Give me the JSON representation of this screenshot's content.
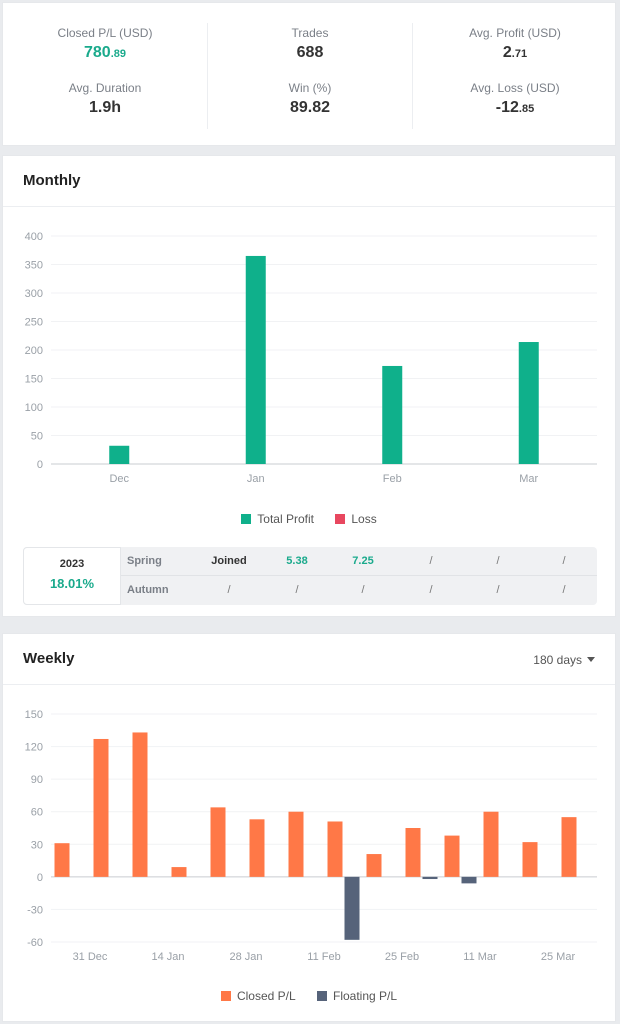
{
  "stats": {
    "closed_pl": {
      "label": "Closed P/L (USD)",
      "int": "780",
      "dec": ".89"
    },
    "trades": {
      "label": "Trades",
      "value": "688"
    },
    "avg_profit": {
      "label": "Avg. Profit (USD)",
      "int": "2",
      "dec": ".71"
    },
    "avg_duration": {
      "label": "Avg. Duration",
      "value": "1.9h"
    },
    "win": {
      "label": "Win (%)",
      "value": "89.82"
    },
    "avg_loss": {
      "label": "Avg. Loss (USD)",
      "int": "-12",
      "dec": ".85"
    }
  },
  "monthly": {
    "title": "Monthly",
    "season": {
      "year": "2023",
      "pct": "18.01%",
      "rows": [
        {
          "name": "Spring",
          "cells": [
            "Joined",
            "5.38",
            "7.25",
            "/",
            "/",
            "/"
          ]
        },
        {
          "name": "Autumn",
          "cells": [
            "/",
            "/",
            "/",
            "/",
            "/",
            "/"
          ]
        }
      ]
    }
  },
  "weekly": {
    "title": "Weekly",
    "period": "180 days"
  },
  "colors": {
    "profit": "#0fb08b",
    "loss": "#e8475f",
    "closed": "#ff7847",
    "floating": "#56637a",
    "accent": "#1aaa8c"
  },
  "chart_data": [
    {
      "type": "bar",
      "categories": [
        "Dec",
        "Jan",
        "Feb",
        "Mar"
      ],
      "series": [
        {
          "name": "Total Profit",
          "values": [
            32,
            365,
            172,
            214
          ]
        },
        {
          "name": "Loss",
          "values": [
            0,
            0,
            0,
            0
          ]
        }
      ],
      "yticks": [
        0,
        50,
        100,
        150,
        200,
        250,
        300,
        350,
        400
      ],
      "ylim": [
        0,
        400
      ],
      "legend": "bottom",
      "grid": true
    },
    {
      "type": "bar",
      "categories": [
        "31 Dec",
        "",
        "14 Jan",
        "",
        "28 Jan",
        "",
        "11 Feb",
        "",
        "25 Feb",
        "",
        "11 Mar",
        "",
        "25 Mar",
        ""
      ],
      "series": [
        {
          "name": "Closed P/L",
          "values": [
            31,
            127,
            133,
            9,
            64,
            53,
            60,
            51,
            21,
            45,
            38,
            60,
            32,
            55
          ]
        },
        {
          "name": "Floating P/L",
          "values": [
            0,
            0,
            0,
            0,
            0,
            0,
            0,
            -58,
            0,
            -2,
            -6,
            0,
            0,
            0
          ]
        }
      ],
      "yticks": [
        -60,
        -30,
        0,
        30,
        60,
        90,
        120,
        150
      ],
      "ylim": [
        -60,
        150
      ],
      "legend": "bottom",
      "grid": true
    }
  ]
}
